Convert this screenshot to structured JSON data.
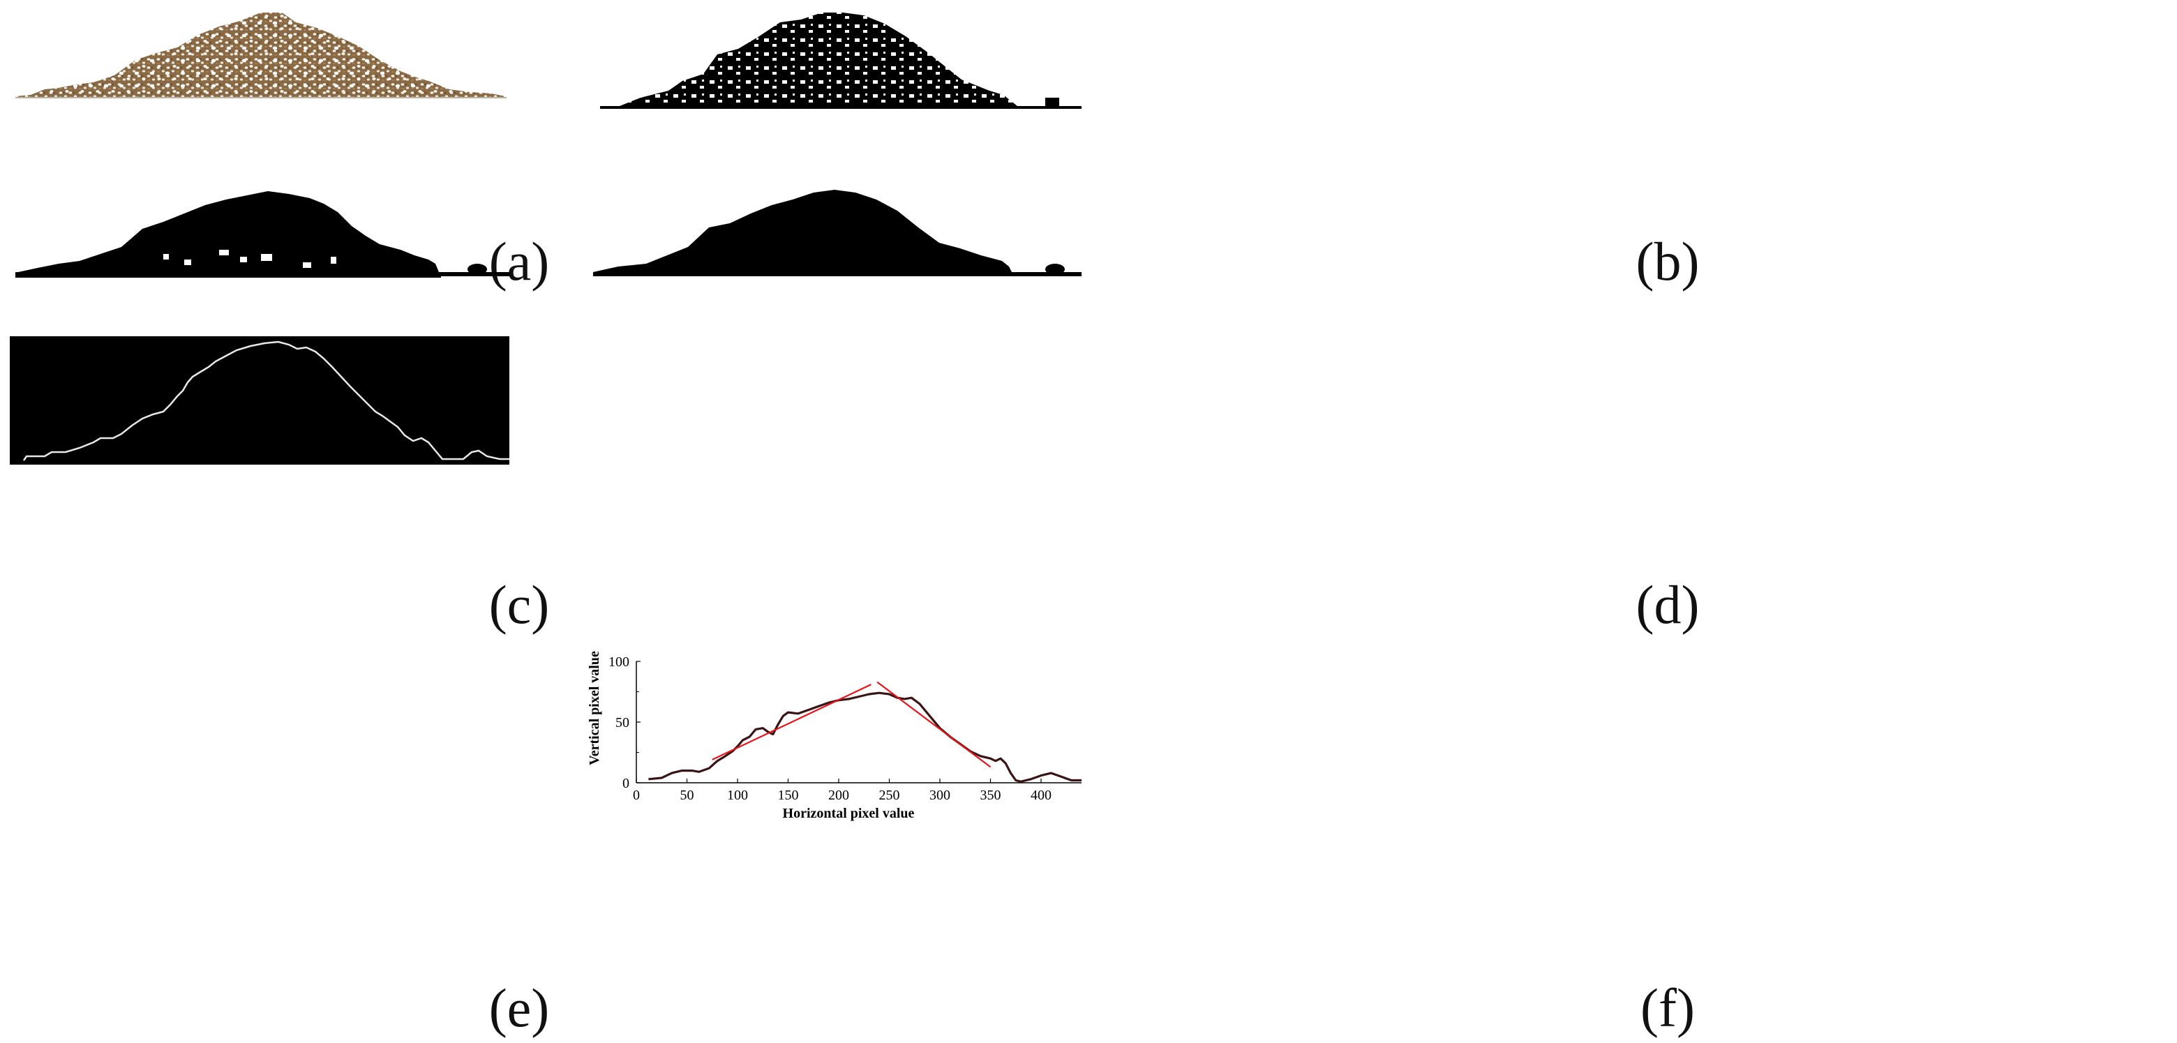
{
  "figure": {
    "panel_labels": [
      "(a)",
      "(b)",
      "(c)",
      "(d)",
      "(e)",
      "(f)"
    ]
  },
  "colors": {
    "soil": "#8a6a45",
    "perlite": "#f2f2ee",
    "silhouette": "#000000",
    "edge": "#e8e8e8",
    "profile_curve": "#3a1414",
    "fit_lines": "#e8141a"
  },
  "chart_data": {
    "type": "line",
    "xlabel": "Horizontal pixel value",
    "ylabel": "Vertical pixel value",
    "xlim": [
      0,
      440
    ],
    "ylim": [
      0,
      100
    ],
    "xticks": [
      0,
      50,
      100,
      150,
      200,
      250,
      300,
      350,
      400
    ],
    "yticks": [
      0,
      50,
      100
    ],
    "series": [
      {
        "values_x": [
          12,
          25,
          35,
          45,
          55,
          62,
          72,
          80,
          88,
          95,
          100,
          105,
          112,
          118,
          125,
          130,
          135,
          140,
          145,
          150,
          160,
          170,
          180,
          190,
          200,
          210,
          220,
          230,
          240,
          250,
          258,
          265,
          272,
          280,
          290,
          300,
          310,
          320,
          330,
          340,
          350,
          355,
          360,
          365,
          370,
          375,
          380,
          390,
          400,
          410,
          420,
          430,
          440
        ],
        "values_y": [
          3,
          4,
          8,
          10,
          10,
          9,
          12,
          18,
          22,
          26,
          30,
          35,
          38,
          44,
          45,
          42,
          40,
          48,
          55,
          58,
          57,
          60,
          63,
          66,
          68,
          69,
          71,
          73,
          74,
          73,
          70,
          69,
          70,
          65,
          55,
          45,
          38,
          32,
          26,
          22,
          20,
          18,
          20,
          16,
          8,
          2,
          1,
          3,
          6,
          8,
          5,
          2,
          2
        ]
      },
      {
        "values_x": [
          75,
          232
        ],
        "values_y": [
          19,
          81
        ]
      },
      {
        "values_x": [
          238,
          350
        ],
        "values_y": [
          83,
          13
        ]
      }
    ]
  }
}
